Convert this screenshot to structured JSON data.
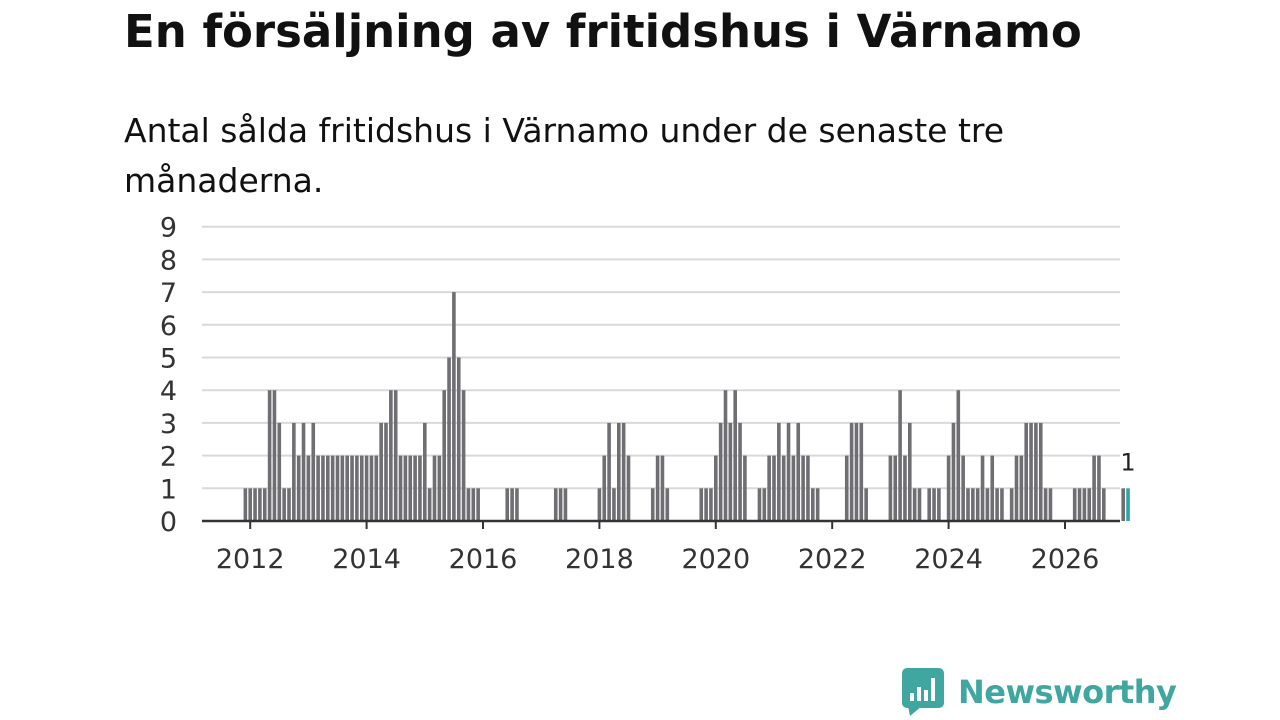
{
  "header": {
    "title": "En försäljning av fritidshus i Värnamo",
    "subtitle": "Antal sålda fritidshus i Värnamo under de senaste tre månaderna."
  },
  "branding": {
    "name": "Newsworthy",
    "icon": "newsworthy-logo-icon",
    "color": "#3fa6a0"
  },
  "colors": {
    "bar": "#6e6e73",
    "highlight": "#2aa6a6",
    "grid": "#d9d9d9",
    "axis": "#333333"
  },
  "chart_data": {
    "type": "bar",
    "title": "En försäljning av fritidshus i Värnamo",
    "subtitle": "Antal sålda fritidshus i Värnamo under de senaste tre månaderna.",
    "xlabel": "",
    "ylabel": "",
    "x_ticks": [
      "2012",
      "2014",
      "2016",
      "2018",
      "2020",
      "2022",
      "2024",
      "2026"
    ],
    "y_ticks": [
      0,
      1,
      2,
      3,
      4,
      5,
      6,
      7,
      8,
      9
    ],
    "ylim": [
      0,
      9
    ],
    "grid": true,
    "legend": "none",
    "frequency": "monthly",
    "x_start": "2011-11",
    "values": [
      0,
      1,
      1,
      1,
      1,
      1,
      4,
      4,
      3,
      1,
      1,
      3,
      2,
      3,
      2,
      3,
      2,
      2,
      2,
      2,
      2,
      2,
      2,
      2,
      2,
      2,
      2,
      2,
      2,
      3,
      3,
      4,
      4,
      2,
      2,
      2,
      2,
      2,
      3,
      1,
      2,
      2,
      4,
      5,
      7,
      5,
      4,
      1,
      1,
      1,
      0,
      0,
      0,
      0,
      0,
      1,
      1,
      1,
      0,
      0,
      0,
      0,
      0,
      0,
      0,
      1,
      1,
      1,
      0,
      0,
      0,
      0,
      0,
      0,
      1,
      2,
      3,
      1,
      3,
      3,
      2,
      0,
      0,
      0,
      0,
      1,
      2,
      2,
      1,
      0,
      0,
      0,
      0,
      0,
      0,
      1,
      1,
      1,
      2,
      3,
      4,
      3,
      4,
      3,
      2,
      0,
      0,
      1,
      1,
      2,
      2,
      3,
      2,
      3,
      2,
      3,
      2,
      2,
      1,
      1,
      0,
      0,
      0,
      0,
      0,
      2,
      3,
      3,
      3,
      1,
      0,
      0,
      0,
      0,
      2,
      2,
      4,
      2,
      3,
      1,
      1,
      0,
      1,
      1,
      1,
      0,
      2,
      3,
      4,
      2,
      1,
      1,
      1,
      2,
      1,
      2,
      1,
      1,
      0,
      1,
      2,
      2,
      3,
      3,
      3,
      3,
      1,
      1,
      0,
      0,
      0,
      0,
      1,
      1,
      1,
      1,
      2,
      2,
      1,
      0,
      0,
      0,
      1,
      1
    ],
    "highlight": {
      "label": "1",
      "value": 1,
      "period": "last"
    }
  }
}
